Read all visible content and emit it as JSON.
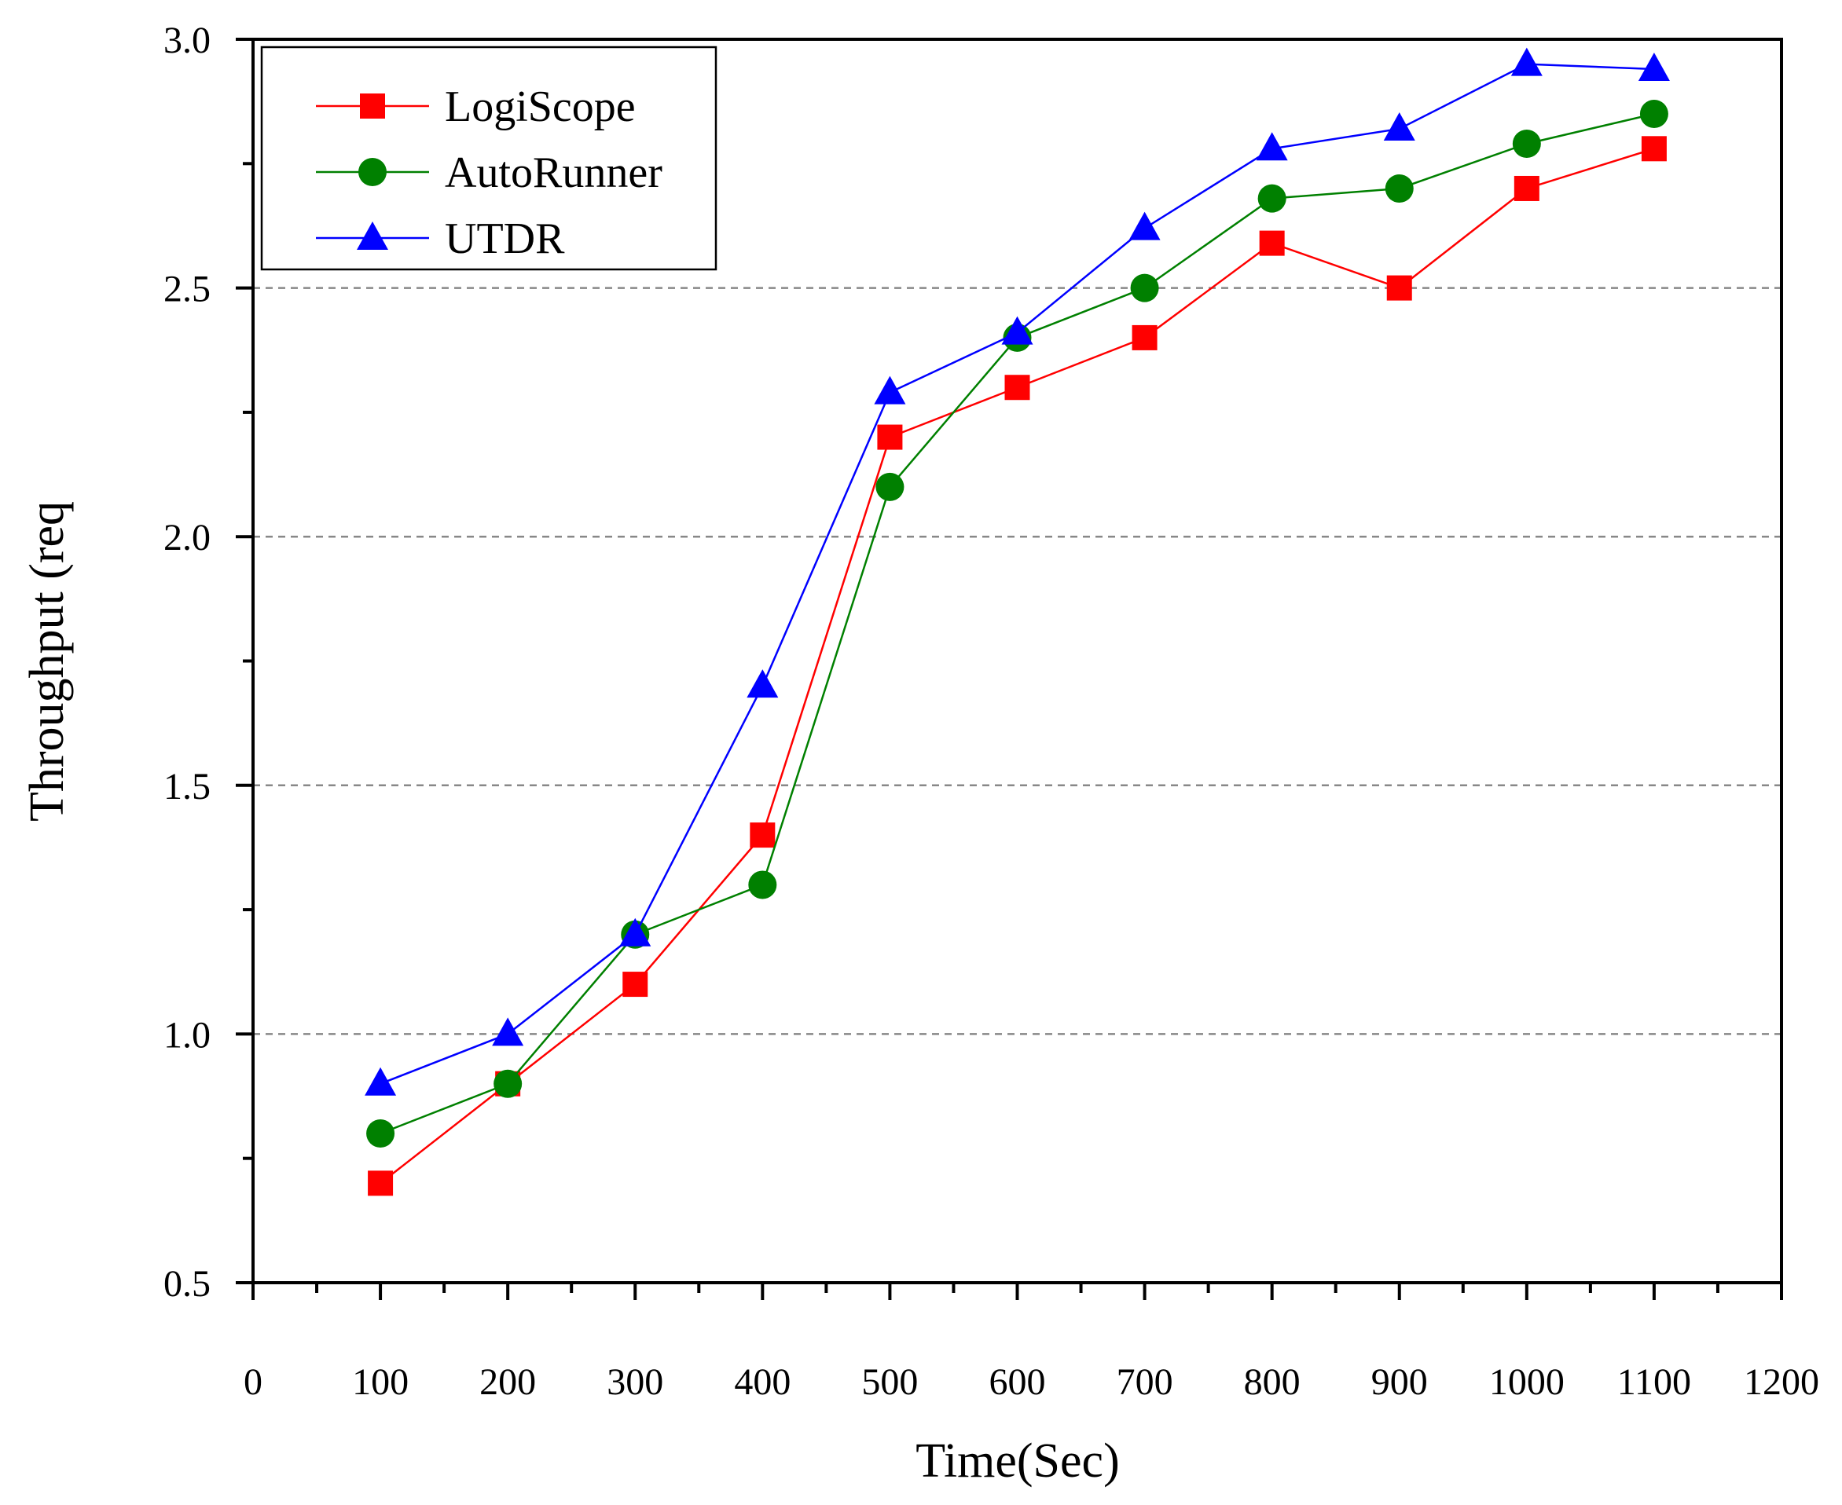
{
  "chart_data": {
    "type": "line",
    "title": "",
    "xlabel": "Time(Sec)",
    "ylabel": "Throughput (req",
    "xlim": [
      0,
      1200
    ],
    "ylim": [
      0.5,
      3.0
    ],
    "x_ticks": [
      0,
      100,
      200,
      300,
      400,
      500,
      600,
      700,
      800,
      900,
      1000,
      1100,
      1200
    ],
    "x_tick_labels": [
      "0",
      "100",
      "200",
      "300",
      "400",
      "500",
      "600",
      "700",
      "800",
      "900",
      "1000",
      "1100",
      "1200"
    ],
    "y_ticks": [
      0.5,
      1.0,
      1.5,
      2.0,
      2.5,
      3.0
    ],
    "y_tick_labels": [
      "0.5",
      "1.0",
      "1.5",
      "2.0",
      "2.5",
      "3.0"
    ],
    "gridlines_y": [
      1.0,
      1.5,
      2.0,
      2.5
    ],
    "legend_position": "top-left",
    "x": [
      100,
      200,
      300,
      400,
      500,
      600,
      700,
      800,
      900,
      1000,
      1100
    ],
    "series": [
      {
        "name": "LogiScope",
        "color": "#ff0000",
        "marker": "square",
        "values": [
          0.7,
          0.9,
          1.1,
          1.4,
          2.2,
          2.3,
          2.4,
          2.59,
          2.5,
          2.7,
          2.78
        ]
      },
      {
        "name": "AutoRunner",
        "color": "#008000",
        "marker": "circle",
        "values": [
          0.8,
          0.9,
          1.2,
          1.3,
          2.1,
          2.4,
          2.5,
          2.68,
          2.7,
          2.79,
          2.85
        ]
      },
      {
        "name": "UTDR",
        "color": "#0000ff",
        "marker": "triangle",
        "values": [
          0.9,
          1.0,
          1.2,
          1.7,
          2.29,
          2.41,
          2.62,
          2.78,
          2.82,
          2.95,
          2.94
        ]
      }
    ]
  }
}
